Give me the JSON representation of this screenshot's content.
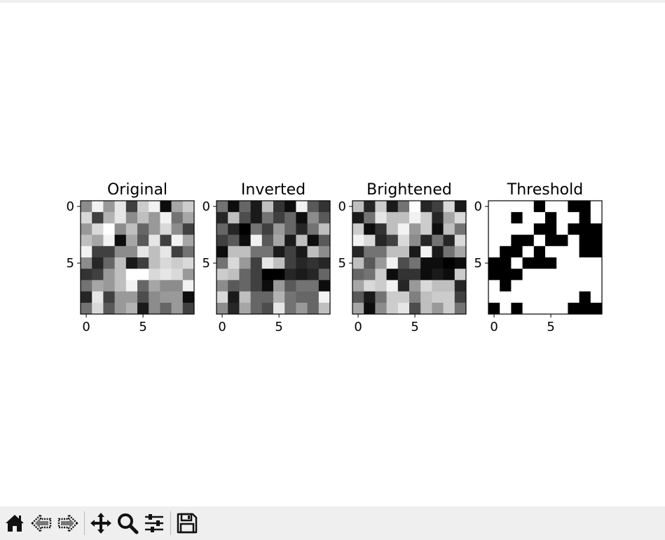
{
  "chart_data": [
    {
      "type": "heatmap",
      "title": "Original",
      "colormap": "gray",
      "xticks": [
        "0",
        "5"
      ],
      "yticks": [
        "0",
        "5"
      ],
      "grid": [
        [
          0.55,
          0.95,
          0.6,
          0.9,
          0.25,
          0.8,
          0.95,
          0.05,
          0.65,
          0.8
        ],
        [
          0.85,
          0.25,
          0.7,
          0.9,
          0.55,
          0.75,
          0.6,
          0.95,
          0.45,
          0.65
        ],
        [
          0.6,
          0.85,
          1.0,
          0.55,
          0.75,
          0.4,
          0.6,
          0.85,
          0.55,
          0.25
        ],
        [
          0.75,
          0.65,
          0.95,
          0.05,
          0.65,
          0.35,
          0.9,
          0.25,
          0.95,
          0.65
        ],
        [
          0.95,
          0.25,
          0.25,
          0.55,
          0.55,
          0.9,
          0.75,
          0.9,
          0.25,
          0.45
        ],
        [
          0.55,
          0.15,
          0.4,
          0.75,
          0.1,
          0.25,
          0.75,
          0.85,
          0.8,
          0.85
        ],
        [
          0.2,
          0.25,
          0.6,
          0.75,
          1.0,
          1.0,
          0.85,
          0.9,
          0.85,
          0.6
        ],
        [
          0.45,
          0.65,
          0.6,
          0.75,
          0.95,
          0.4,
          0.65,
          0.55,
          0.55,
          0.95
        ],
        [
          0.15,
          0.9,
          0.25,
          0.6,
          0.6,
          0.3,
          0.55,
          0.6,
          0.6,
          0.05
        ],
        [
          0.45,
          0.85,
          0.35,
          0.6,
          0.7,
          0.1,
          0.55,
          0.4,
          0.6,
          0.25
        ]
      ]
    },
    {
      "type": "heatmap",
      "title": "Inverted",
      "colormap": "gray",
      "xticks": [
        "0",
        "5"
      ],
      "yticks": [
        "0",
        "5"
      ],
      "grid": [
        [
          0.45,
          0.05,
          0.4,
          0.1,
          0.75,
          0.2,
          0.05,
          0.95,
          0.35,
          0.2
        ],
        [
          0.15,
          0.75,
          0.3,
          0.1,
          0.45,
          0.25,
          0.4,
          0.05,
          0.55,
          0.35
        ],
        [
          0.4,
          0.15,
          0.0,
          0.45,
          0.25,
          0.6,
          0.4,
          0.15,
          0.45,
          0.75
        ],
        [
          0.25,
          0.35,
          0.05,
          0.95,
          0.35,
          0.65,
          0.1,
          0.75,
          0.05,
          0.35
        ],
        [
          0.05,
          0.75,
          0.75,
          0.45,
          0.45,
          0.1,
          0.25,
          0.1,
          0.75,
          0.55
        ],
        [
          0.45,
          0.85,
          0.6,
          0.25,
          0.9,
          0.75,
          0.25,
          0.15,
          0.2,
          0.15
        ],
        [
          0.8,
          0.75,
          0.4,
          0.25,
          0.0,
          0.0,
          0.15,
          0.1,
          0.15,
          0.4
        ],
        [
          0.55,
          0.35,
          0.4,
          0.25,
          0.05,
          0.6,
          0.35,
          0.45,
          0.45,
          0.05
        ],
        [
          0.85,
          0.1,
          0.75,
          0.4,
          0.4,
          0.7,
          0.45,
          0.4,
          0.4,
          0.95
        ],
        [
          0.55,
          0.15,
          0.65,
          0.4,
          0.3,
          0.9,
          0.45,
          0.6,
          0.4,
          0.75
        ]
      ]
    },
    {
      "type": "heatmap",
      "title": "Brightened",
      "colormap": "gray",
      "xticks": [
        "0",
        "5"
      ],
      "yticks": [
        "0",
        "5"
      ],
      "grid": [
        [
          0.75,
          0.15,
          0.8,
          0.1,
          0.45,
          1.0,
          0.15,
          0.25,
          0.85,
          0.1
        ],
        [
          0.1,
          0.45,
          0.9,
          0.75,
          0.75,
          0.95,
          0.8,
          0.15,
          0.65,
          0.85
        ],
        [
          0.8,
          0.05,
          0.2,
          0.75,
          0.95,
          0.6,
          0.8,
          0.05,
          0.75,
          0.45
        ],
        [
          0.95,
          0.85,
          0.15,
          0.25,
          0.85,
          0.55,
          0.15,
          0.45,
          0.15,
          0.85
        ],
        [
          0.15,
          0.45,
          0.45,
          0.75,
          0.75,
          0.1,
          0.95,
          0.1,
          0.45,
          0.65
        ],
        [
          0.75,
          0.35,
          0.6,
          0.95,
          0.3,
          0.45,
          0.05,
          0.05,
          0.0,
          0.05
        ],
        [
          0.4,
          0.45,
          0.8,
          0.05,
          0.2,
          0.2,
          0.05,
          0.1,
          0.05,
          0.8
        ],
        [
          0.65,
          0.85,
          0.8,
          0.95,
          0.15,
          0.6,
          0.85,
          0.75,
          0.75,
          0.15
        ],
        [
          0.35,
          0.1,
          0.45,
          0.8,
          0.8,
          0.5,
          0.75,
          0.8,
          0.8,
          0.25
        ],
        [
          0.65,
          0.05,
          0.55,
          0.8,
          0.9,
          0.3,
          0.75,
          0.6,
          0.8,
          0.45
        ]
      ]
    },
    {
      "type": "heatmap",
      "title": "Threshold",
      "colormap": "gray",
      "xticks": [
        "0",
        "5"
      ],
      "yticks": [
        "0",
        "5"
      ],
      "grid": [
        [
          1,
          1,
          1,
          1,
          0,
          1,
          1,
          0,
          0,
          1
        ],
        [
          1,
          1,
          0,
          1,
          1,
          0,
          1,
          1,
          0,
          1
        ],
        [
          1,
          1,
          1,
          1,
          0,
          0,
          1,
          0,
          0,
          0
        ],
        [
          1,
          1,
          0,
          0,
          1,
          0,
          0,
          1,
          0,
          0
        ],
        [
          1,
          0,
          0,
          1,
          0,
          1,
          1,
          1,
          0,
          0
        ],
        [
          0,
          0,
          1,
          0,
          0,
          0,
          1,
          1,
          1,
          1
        ],
        [
          0,
          0,
          0,
          1,
          1,
          1,
          1,
          1,
          1,
          1
        ],
        [
          1,
          0,
          1,
          1,
          1,
          1,
          1,
          1,
          1,
          1
        ],
        [
          1,
          1,
          1,
          1,
          1,
          1,
          1,
          1,
          0,
          1
        ],
        [
          0,
          1,
          0,
          1,
          1,
          1,
          1,
          0,
          0,
          0
        ]
      ]
    }
  ],
  "toolbar": {
    "buttons": [
      {
        "name": "home",
        "icon": "home-icon"
      },
      {
        "name": "back",
        "icon": "back-arrow-icon"
      },
      {
        "name": "forward",
        "icon": "forward-arrow-icon"
      },
      {
        "name": "pan",
        "icon": "move-icon"
      },
      {
        "name": "zoom",
        "icon": "zoom-icon"
      },
      {
        "name": "configure-subplots",
        "icon": "sliders-icon"
      },
      {
        "name": "save",
        "icon": "floppy-disk-icon"
      }
    ]
  }
}
